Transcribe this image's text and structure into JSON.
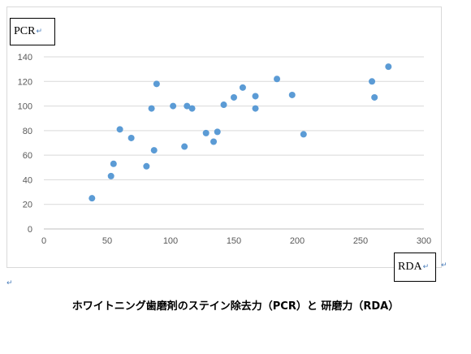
{
  "chart_data": {
    "type": "scatter",
    "ylabel": "PCR",
    "xlabel": "RDA",
    "xlim": [
      0,
      300
    ],
    "ylim": [
      0,
      140
    ],
    "x_ticks": [
      0,
      50,
      100,
      150,
      200,
      250,
      300
    ],
    "y_ticks": [
      0,
      20,
      40,
      60,
      80,
      100,
      120,
      140
    ],
    "grid": "horizontal",
    "point_color": "#5b9bd5",
    "points": [
      {
        "x": 38,
        "y": 25
      },
      {
        "x": 53,
        "y": 43
      },
      {
        "x": 55,
        "y": 53
      },
      {
        "x": 60,
        "y": 81
      },
      {
        "x": 69,
        "y": 74
      },
      {
        "x": 81,
        "y": 51
      },
      {
        "x": 85,
        "y": 98
      },
      {
        "x": 87,
        "y": 64
      },
      {
        "x": 89,
        "y": 118
      },
      {
        "x": 102,
        "y": 100
      },
      {
        "x": 111,
        "y": 67
      },
      {
        "x": 113,
        "y": 100
      },
      {
        "x": 117,
        "y": 98
      },
      {
        "x": 128,
        "y": 78
      },
      {
        "x": 134,
        "y": 71
      },
      {
        "x": 137,
        "y": 79
      },
      {
        "x": 142,
        "y": 101
      },
      {
        "x": 150,
        "y": 107
      },
      {
        "x": 157,
        "y": 115
      },
      {
        "x": 167,
        "y": 98
      },
      {
        "x": 167,
        "y": 108
      },
      {
        "x": 184,
        "y": 122
      },
      {
        "x": 196,
        "y": 109
      },
      {
        "x": 205,
        "y": 77
      },
      {
        "x": 259,
        "y": 120
      },
      {
        "x": 261,
        "y": 107
      },
      {
        "x": 272,
        "y": 132
      }
    ]
  },
  "marks": {
    "return_mark": "↵"
  },
  "caption": "ホワイトニング歯磨剤のステイン除去力（PCR）と 研磨力（RDA）"
}
